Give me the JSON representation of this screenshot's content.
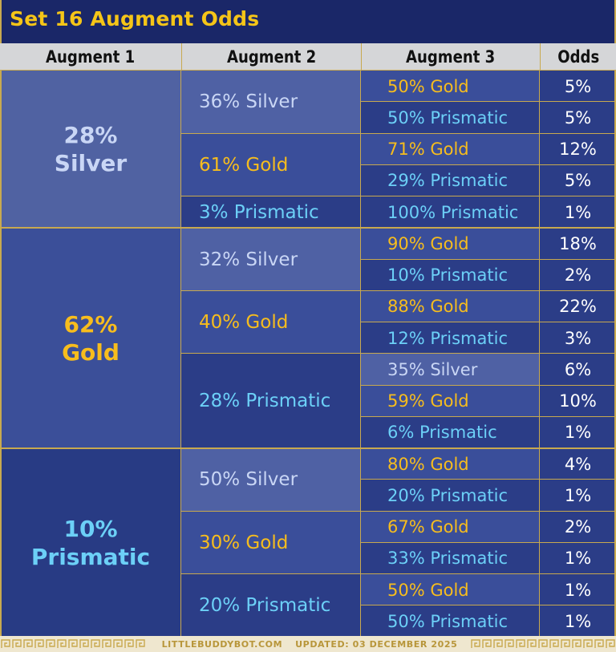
{
  "title": "Set 16 Augment Odds",
  "headers": [
    "Augment 1",
    "Augment 2",
    "Augment 3",
    "Odds"
  ],
  "colors": {
    "silver": "#c9d6f5",
    "gold": "#f7bd1d",
    "prismatic": "#6cd0f7",
    "odds": "#ffffff",
    "title": "#f5c518",
    "border": "#c8a94f"
  },
  "groups": [
    {
      "augment1": {
        "pct": "28%",
        "name": "Silver",
        "tier": "silver"
      },
      "augment2": [
        {
          "label": "36% Silver",
          "tier": "silver",
          "augment3": [
            {
              "label": "50% Gold",
              "tier": "gold",
              "odds": "5%"
            },
            {
              "label": "50% Prismatic",
              "tier": "prismatic",
              "odds": "5%"
            }
          ]
        },
        {
          "label": "61% Gold",
          "tier": "gold",
          "augment3": [
            {
              "label": "71% Gold",
              "tier": "gold",
              "odds": "12%"
            },
            {
              "label": "29% Prismatic",
              "tier": "prismatic",
              "odds": "5%"
            }
          ]
        },
        {
          "label": "3%  Prismatic",
          "tier": "prismatic",
          "augment3": [
            {
              "label": "100% Prismatic",
              "tier": "prismatic",
              "odds": "1%"
            }
          ]
        }
      ]
    },
    {
      "augment1": {
        "pct": "62%",
        "name": "Gold",
        "tier": "gold"
      },
      "augment2": [
        {
          "label": "32% Silver",
          "tier": "silver",
          "augment3": [
            {
              "label": "90% Gold",
              "tier": "gold",
              "odds": "18%"
            },
            {
              "label": "10% Prismatic",
              "tier": "prismatic",
              "odds": "2%"
            }
          ]
        },
        {
          "label": "40% Gold",
          "tier": "gold",
          "augment3": [
            {
              "label": "88% Gold",
              "tier": "gold",
              "odds": "22%"
            },
            {
              "label": "12% Prismatic",
              "tier": "prismatic",
              "odds": "3%"
            }
          ]
        },
        {
          "label": "28% Prismatic",
          "tier": "prismatic",
          "augment3": [
            {
              "label": "35% Silver",
              "tier": "silver",
              "odds": "6%"
            },
            {
              "label": "59% Gold",
              "tier": "gold",
              "odds": "10%"
            },
            {
              "label": "6% Prismatic",
              "tier": "prismatic",
              "odds": "1%"
            }
          ]
        }
      ]
    },
    {
      "augment1": {
        "pct": "10%",
        "name": "Prismatic",
        "tier": "prismatic"
      },
      "augment2": [
        {
          "label": "50% Silver",
          "tier": "silver",
          "augment3": [
            {
              "label": "80% Gold",
              "tier": "gold",
              "odds": "4%"
            },
            {
              "label": "20% Prismatic",
              "tier": "prismatic",
              "odds": "1%"
            }
          ]
        },
        {
          "label": "30% Gold",
          "tier": "gold",
          "augment3": [
            {
              "label": "67% Gold",
              "tier": "gold",
              "odds": "2%"
            },
            {
              "label": "33% Prismatic",
              "tier": "prismatic",
              "odds": "1%"
            }
          ]
        },
        {
          "label": "20% Prismatic",
          "tier": "prismatic",
          "augment3": [
            {
              "label": "50% Gold",
              "tier": "gold",
              "odds": "1%"
            },
            {
              "label": "50% Prismatic",
              "tier": "prismatic",
              "odds": "1%"
            }
          ]
        }
      ]
    }
  ],
  "footer": {
    "site": "LITTLEBUDDYBOT.COM",
    "updated": "UPDATED: 03 DECEMBER 2025"
  }
}
